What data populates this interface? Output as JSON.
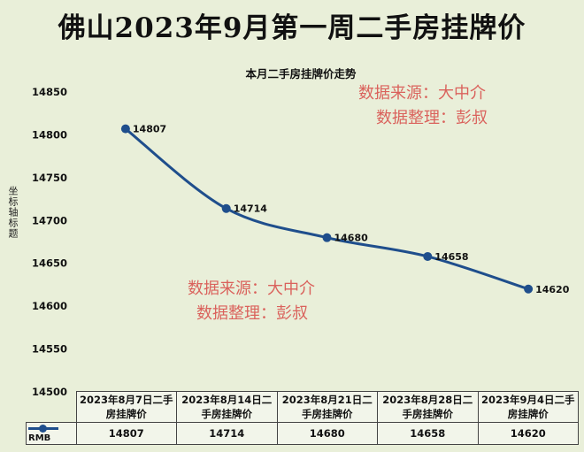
{
  "main_title": "佛山2023年9月第一周二手房挂牌价",
  "watermark": {
    "line1": "数据来源：大中介",
    "line2": "数据整理：彭叔"
  },
  "colors": {
    "line": "#1f4e8c",
    "watermark": "#d9534f",
    "background": "#e9efd9"
  },
  "chart_data": {
    "type": "line",
    "title": "本月二手房挂牌价走势",
    "ylabel": "坐标轴标题",
    "ylim": [
      14500,
      14850
    ],
    "yticks": [
      14500,
      14550,
      14600,
      14650,
      14700,
      14750,
      14800,
      14850
    ],
    "categories": [
      "2023年8月7日二手房挂牌价",
      "2023年8月14日二手房挂牌价",
      "2023年8月21日二手房挂牌价",
      "2023年8月28日二手房挂牌价",
      "2023年9月4日二手房挂牌价"
    ],
    "series": [
      {
        "name": "RMB",
        "values": [
          14807,
          14714,
          14680,
          14658,
          14620
        ]
      }
    ],
    "data_labels": true,
    "grid": false,
    "legend": "data-table"
  }
}
